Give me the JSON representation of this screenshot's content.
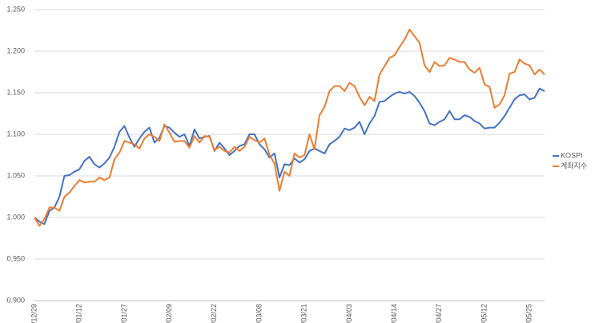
{
  "chart_data": {
    "type": "line",
    "categories": [
      "22/12/29",
      null,
      null,
      null,
      null,
      null,
      null,
      null,
      null,
      "23/01/12",
      null,
      null,
      null,
      null,
      null,
      null,
      null,
      null,
      "23/01/27",
      null,
      null,
      null,
      null,
      null,
      null,
      null,
      null,
      "23/02/09",
      null,
      null,
      null,
      null,
      null,
      null,
      null,
      null,
      "23/02/22",
      null,
      null,
      null,
      null,
      null,
      null,
      null,
      null,
      "23/03/08",
      null,
      null,
      null,
      null,
      null,
      null,
      null,
      null,
      "23/03/21",
      null,
      null,
      null,
      null,
      null,
      null,
      null,
      null,
      "23/04/03",
      null,
      null,
      null,
      null,
      null,
      null,
      null,
      null,
      "23/04/14",
      null,
      null,
      null,
      null,
      null,
      null,
      null,
      null,
      "23/04/27",
      null,
      null,
      null,
      null,
      null,
      null,
      null,
      null,
      "23/05/12",
      null,
      null,
      null,
      null,
      null,
      null,
      null,
      null,
      "23/05/25",
      null,
      null,
      null
    ],
    "series": [
      {
        "name": "KOSPI",
        "color": "#4472c4",
        "values": [
          1.0,
          0.995,
          0.992,
          1.008,
          1.012,
          1.025,
          1.05,
          1.051,
          1.055,
          1.058,
          1.068,
          1.073,
          1.064,
          1.06,
          1.065,
          1.072,
          1.085,
          1.103,
          1.11,
          1.096,
          1.085,
          1.095,
          1.103,
          1.108,
          1.09,
          1.096,
          1.11,
          1.108,
          1.102,
          1.097,
          1.1,
          1.086,
          1.106,
          1.095,
          1.097,
          1.098,
          1.08,
          1.09,
          1.083,
          1.075,
          1.08,
          1.086,
          1.088,
          1.1,
          1.1,
          1.088,
          1.082,
          1.072,
          1.077,
          1.048,
          1.064,
          1.063,
          1.071,
          1.066,
          1.07,
          1.08,
          1.083,
          1.08,
          1.077,
          1.088,
          1.092,
          1.097,
          1.107,
          1.105,
          1.108,
          1.115,
          1.1,
          1.113,
          1.122,
          1.139,
          1.14,
          1.145,
          1.149,
          1.151,
          1.149,
          1.151,
          1.146,
          1.138,
          1.128,
          1.113,
          1.111,
          1.115,
          1.118,
          1.128,
          1.118,
          1.118,
          1.123,
          1.121,
          1.116,
          1.113,
          1.107,
          1.108,
          1.108,
          1.114,
          1.122,
          1.132,
          1.142,
          1.147,
          1.148,
          1.142,
          1.144,
          1.155,
          1.152
        ]
      },
      {
        "name": "계좌지수",
        "color": "#ed7d31",
        "values": [
          1.0,
          0.99,
          0.998,
          1.012,
          1.012,
          1.008,
          1.025,
          1.03,
          1.038,
          1.045,
          1.042,
          1.043,
          1.043,
          1.048,
          1.045,
          1.048,
          1.07,
          1.078,
          1.092,
          1.09,
          1.088,
          1.083,
          1.095,
          1.1,
          1.097,
          1.092,
          1.112,
          1.102,
          1.091,
          1.092,
          1.092,
          1.084,
          1.098,
          1.09,
          1.098,
          1.097,
          1.081,
          1.085,
          1.08,
          1.078,
          1.085,
          1.08,
          1.085,
          1.097,
          1.093,
          1.09,
          1.095,
          1.075,
          1.065,
          1.032,
          1.055,
          1.05,
          1.077,
          1.072,
          1.075,
          1.1,
          1.082,
          1.123,
          1.133,
          1.152,
          1.158,
          1.158,
          1.152,
          1.162,
          1.158,
          1.145,
          1.135,
          1.145,
          1.14,
          1.172,
          1.182,
          1.192,
          1.195,
          1.205,
          1.214,
          1.226,
          1.218,
          1.21,
          1.183,
          1.175,
          1.187,
          1.182,
          1.183,
          1.192,
          1.19,
          1.187,
          1.187,
          1.178,
          1.174,
          1.18,
          1.16,
          1.157,
          1.132,
          1.136,
          1.147,
          1.173,
          1.175,
          1.19,
          1.185,
          1.183,
          1.172,
          1.178,
          1.172
        ]
      }
    ],
    "ylim": [
      0.9,
      1.25
    ],
    "yticks": [
      {
        "value": 0.9,
        "label": "0.900"
      },
      {
        "value": 0.95,
        "label": "0.950"
      },
      {
        "value": 1.0,
        "label": "1.000"
      },
      {
        "value": 1.05,
        "label": "1.050"
      },
      {
        "value": 1.1,
        "label": "1.100"
      },
      {
        "value": 1.15,
        "label": "1.150"
      },
      {
        "value": 1.2,
        "label": "1.200"
      },
      {
        "value": 1.25,
        "label": "1.250"
      }
    ],
    "grid": true,
    "legend": "right"
  }
}
